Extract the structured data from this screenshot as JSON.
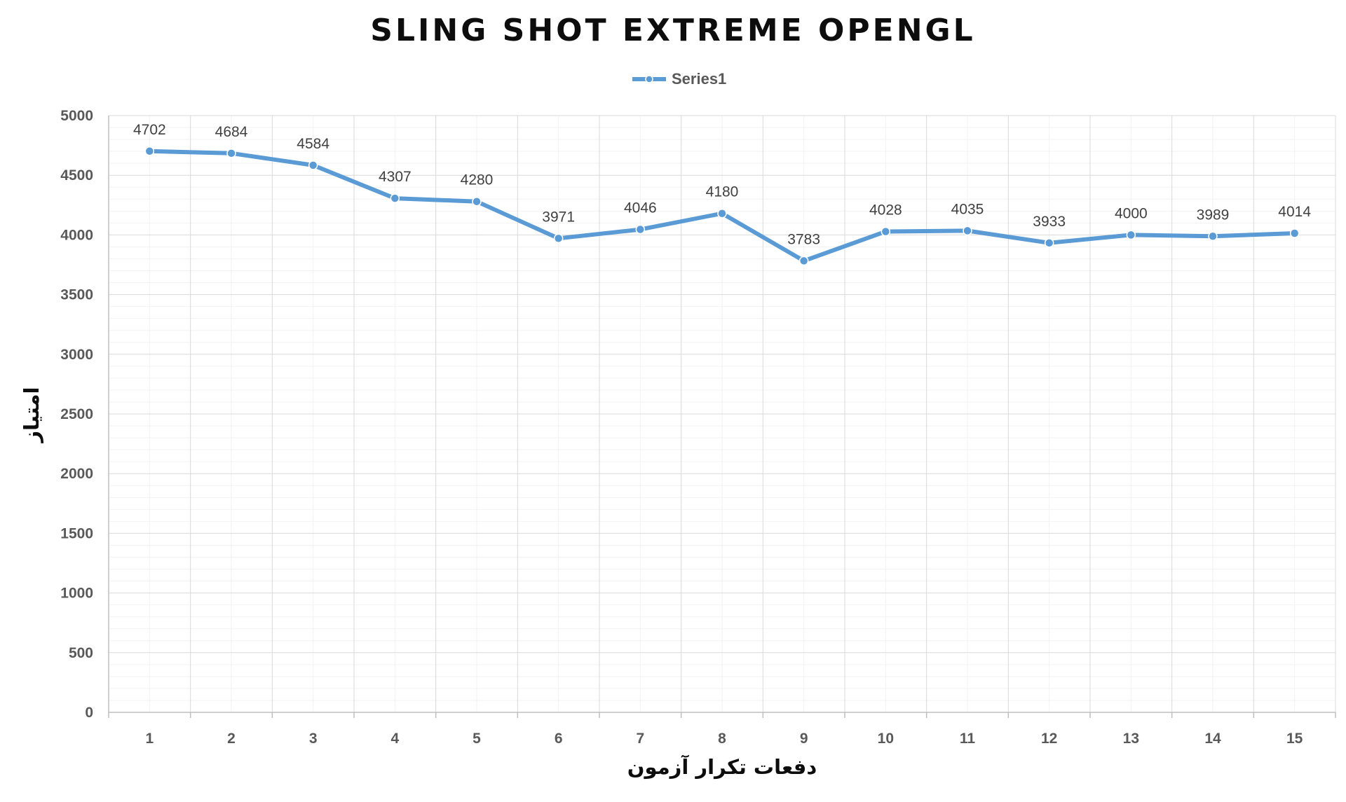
{
  "chart_data": {
    "type": "line",
    "title": "SLING SHOT EXTREME OPENGL",
    "xlabel": "دفعات تکرار آزمون",
    "ylabel": "امتیاز",
    "categories": [
      "1",
      "2",
      "3",
      "4",
      "5",
      "6",
      "7",
      "8",
      "9",
      "10",
      "11",
      "12",
      "13",
      "14",
      "15"
    ],
    "series": [
      {
        "name": "Series1",
        "values": [
          4702,
          4684,
          4584,
          4307,
          4280,
          3971,
          4046,
          4180,
          3783,
          4028,
          4035,
          3933,
          4000,
          3989,
          4014
        ]
      }
    ],
    "ylim": [
      0,
      5000
    ],
    "ytick_step": 500,
    "yticks": [
      "0",
      "500",
      "1000",
      "1500",
      "2000",
      "2500",
      "3000",
      "3500",
      "4000",
      "4500",
      "5000"
    ],
    "data_labels": true,
    "grid": true,
    "legend": "top-center",
    "colors": {
      "series": "#5b9bd5",
      "grid_major": "#d9d9d9",
      "grid_minor": "#f2f2f2",
      "axis": "#bfbfbf"
    }
  }
}
